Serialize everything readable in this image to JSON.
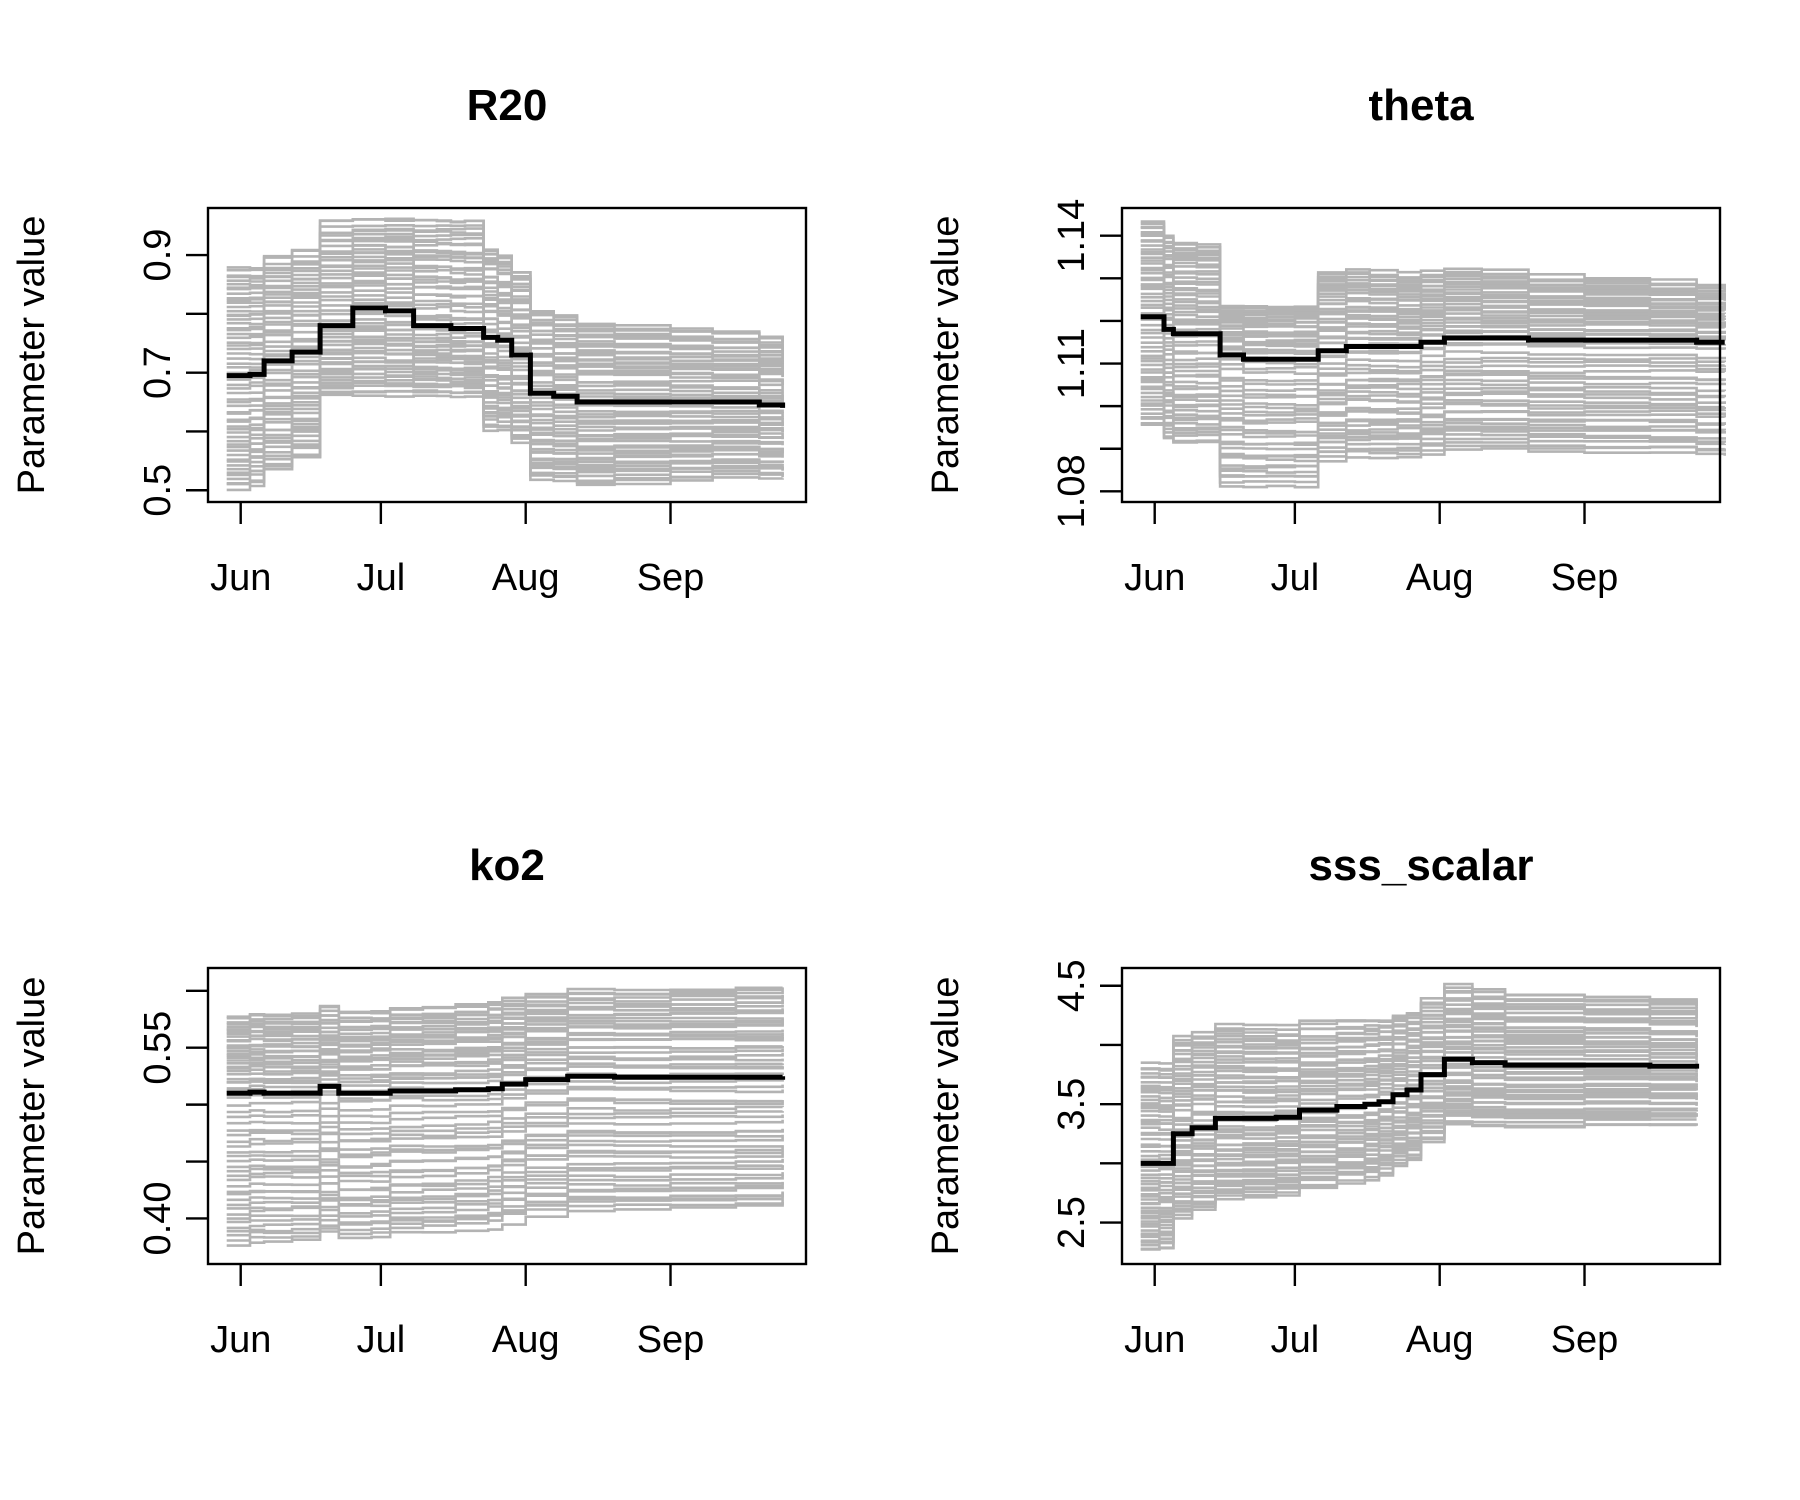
{
  "colors": {
    "ensemble": "#b3b3b3",
    "mean": "#000000",
    "axis": "#000000",
    "background": "#ffffff"
  },
  "chart_data": [
    {
      "type": "line",
      "title": "R20",
      "xlabel": "",
      "ylabel": "Parameter value",
      "x_ticks": [
        "Jun",
        "Jul",
        "Aug",
        "Sep"
      ],
      "x_tick_dates": [
        "06-01",
        "07-01",
        "08-01",
        "09-01"
      ],
      "xlim": [
        "05-25",
        "09-30"
      ],
      "y_ticks": [
        "0.5",
        "0.7",
        "0.9"
      ],
      "y_tick_values": [
        0.5,
        0.6,
        0.7,
        0.8,
        0.9
      ],
      "ylim": [
        0.48,
        0.98
      ],
      "grid": false,
      "legend": "none",
      "x_dates": [
        "05-29",
        "06-03",
        "06-06",
        "06-12",
        "06-18",
        "06-25",
        "07-02",
        "07-08",
        "07-13",
        "07-16",
        "07-19",
        "07-23",
        "07-26",
        "07-29",
        "08-02",
        "08-07",
        "08-12",
        "08-20",
        "09-01",
        "09-10",
        "09-20",
        "09-25"
      ],
      "series": [
        {
          "role": "mean",
          "values": [
            0.695,
            0.697,
            0.72,
            0.735,
            0.78,
            0.81,
            0.805,
            0.78,
            0.78,
            0.775,
            0.775,
            0.76,
            0.755,
            0.73,
            0.665,
            0.66,
            0.65,
            0.65,
            0.65,
            0.65,
            0.645,
            0.64
          ]
        }
      ],
      "ensemble": {
        "count": 60,
        "start_spread": [
          0.5,
          0.88
        ],
        "peak_spread": [
          0.66,
          0.96
        ],
        "end_spread": [
          0.515,
          0.755
        ]
      }
    },
    {
      "type": "line",
      "title": "theta",
      "xlabel": "",
      "ylabel": "Parameter value",
      "x_ticks": [
        "Jun",
        "Jul",
        "Aug",
        "Sep"
      ],
      "x_tick_dates": [
        "06-01",
        "07-01",
        "08-01",
        "09-01"
      ],
      "xlim": [
        "05-25",
        "09-30"
      ],
      "y_ticks": [
        "1.08",
        "1.11",
        "1.14"
      ],
      "y_tick_values": [
        1.08,
        1.09,
        1.1,
        1.11,
        1.12,
        1.13,
        1.14
      ],
      "ylim": [
        1.0775,
        1.1465
      ],
      "grid": false,
      "legend": "none",
      "x_dates": [
        "05-29",
        "06-03",
        "06-05",
        "06-10",
        "06-15",
        "06-20",
        "06-25",
        "07-01",
        "07-06",
        "07-12",
        "07-17",
        "07-23",
        "07-28",
        "08-02",
        "08-10",
        "08-20",
        "09-01",
        "09-15",
        "09-25",
        "10-01"
      ],
      "series": [
        {
          "role": "mean",
          "values": [
            1.121,
            1.118,
            1.117,
            1.117,
            1.112,
            1.111,
            1.111,
            1.111,
            1.113,
            1.114,
            1.114,
            1.114,
            1.115,
            1.116,
            1.116,
            1.1155,
            1.1155,
            1.1155,
            1.115,
            1.115
          ]
        }
      ],
      "ensemble": {
        "count": 60,
        "start_spread": [
          1.095,
          1.144
        ],
        "dip_spread": [
          1.0805,
          1.124
        ],
        "end_spread": [
          1.088,
          1.128
        ]
      }
    },
    {
      "type": "line",
      "title": "ko2",
      "xlabel": "",
      "ylabel": "Parameter value",
      "x_ticks": [
        "Jun",
        "Jul",
        "Aug",
        "Sep"
      ],
      "x_tick_dates": [
        "06-01",
        "07-01",
        "08-01",
        "09-01"
      ],
      "xlim": [
        "05-25",
        "09-30"
      ],
      "y_ticks": [
        "0.40",
        "0.55"
      ],
      "y_tick_values": [
        0.4,
        0.45,
        0.5,
        0.55,
        0.6
      ],
      "ylim": [
        0.36,
        0.62
      ],
      "grid": false,
      "legend": "none",
      "x_dates": [
        "05-29",
        "06-03",
        "06-06",
        "06-12",
        "06-18",
        "06-22",
        "06-29",
        "07-03",
        "07-10",
        "07-17",
        "07-24",
        "07-27",
        "08-01",
        "08-10",
        "08-20",
        "09-01",
        "09-15",
        "09-25"
      ],
      "series": [
        {
          "role": "mean",
          "values": [
            0.51,
            0.511,
            0.51,
            0.51,
            0.516,
            0.51,
            0.51,
            0.512,
            0.512,
            0.513,
            0.514,
            0.518,
            0.522,
            0.525,
            0.524,
            0.524,
            0.524,
            0.525
          ]
        }
      ],
      "ensemble": {
        "count": 60,
        "start_spread": [
          0.375,
          0.578
        ],
        "end_spread": [
          0.41,
          0.605
        ]
      }
    },
    {
      "type": "line",
      "title": "sss_scalar",
      "xlabel": "",
      "ylabel": "Parameter value",
      "x_ticks": [
        "Jun",
        "Jul",
        "Aug",
        "Sep"
      ],
      "x_tick_dates": [
        "06-01",
        "07-01",
        "08-01",
        "09-01"
      ],
      "xlim": [
        "05-25",
        "09-30"
      ],
      "y_ticks": [
        "2.5",
        "3.5",
        "4.5"
      ],
      "y_tick_values": [
        2.5,
        3.0,
        3.5,
        4.0,
        4.5
      ],
      "ylim": [
        2.15,
        4.65
      ],
      "grid": false,
      "legend": "none",
      "x_dates": [
        "05-29",
        "06-02",
        "06-05",
        "06-09",
        "06-14",
        "06-20",
        "06-27",
        "07-02",
        "07-10",
        "07-16",
        "07-19",
        "07-22",
        "07-25",
        "07-28",
        "08-02",
        "08-08",
        "08-15",
        "09-01",
        "09-15",
        "09-25"
      ],
      "series": [
        {
          "role": "mean",
          "values": [
            3.0,
            3.0,
            3.25,
            3.3,
            3.38,
            3.38,
            3.39,
            3.45,
            3.48,
            3.5,
            3.52,
            3.58,
            3.62,
            3.75,
            3.88,
            3.85,
            3.83,
            3.83,
            3.82,
            3.8
          ]
        }
      ],
      "ensemble": {
        "count": 60,
        "start_spread": [
          2.25,
          3.85
        ],
        "end_spread": [
          3.33,
          4.35
        ]
      }
    }
  ]
}
